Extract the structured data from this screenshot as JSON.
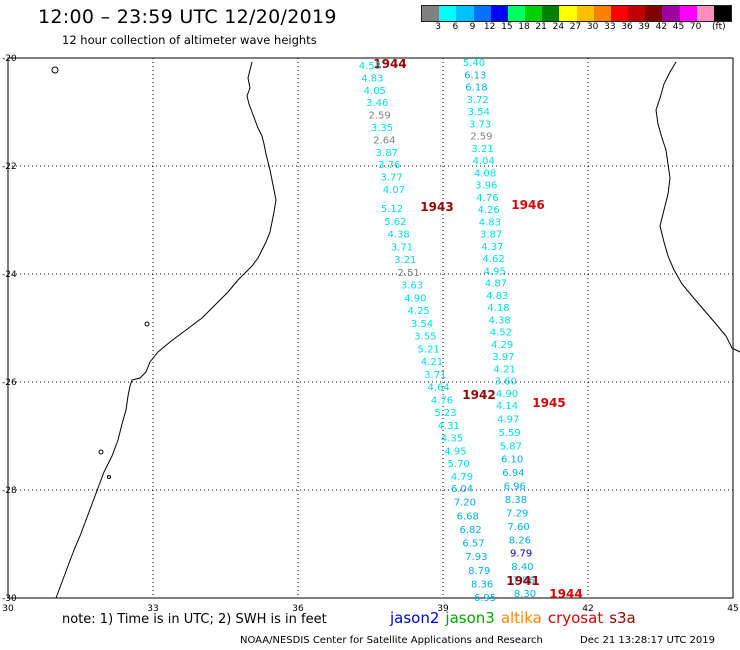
{
  "header": {
    "title": "12:00  –  23:59  UTC  12/20/2019",
    "subtitle": "12 hour collection of altimeter wave heights"
  },
  "legend": {
    "colors": [
      "#808080",
      "#00ffff",
      "#00c0ff",
      "#0070ff",
      "#0000ff",
      "#00ff60",
      "#00d000",
      "#008000",
      "#ffff00",
      "#ffc000",
      "#ff8000",
      "#ff0000",
      "#c00000",
      "#800000",
      "#a000a0",
      "#ff00ff",
      "#ff90c0",
      "#000000"
    ],
    "labels": [
      "3",
      "6",
      "9",
      "12",
      "15",
      "18",
      "21",
      "24",
      "27",
      "30",
      "33",
      "36",
      "39",
      "42",
      "45",
      "70",
      "(ft)"
    ]
  },
  "map": {
    "lat_labels": [
      "-20",
      "-22",
      "-24",
      "-26",
      "-28",
      "-30"
    ],
    "lon_labels": [
      "30",
      "33",
      "36",
      "39",
      "42",
      "45"
    ]
  },
  "passes": [
    {
      "id": "1944",
      "sat": "cryosat",
      "values": [
        "4.53",
        "4.83",
        "4.05",
        "3.46",
        "2.59",
        "3.35",
        "2.64",
        "3.87",
        "3.76",
        "3.77",
        "4.07"
      ]
    },
    {
      "id": "1943",
      "sat": "cryosat",
      "values": [
        "5.12",
        "5.62",
        "4.38",
        "3.71",
        "3.21",
        "2.51",
        "3.63",
        "4.90",
        "4.25",
        "3.54",
        "3.55",
        "5.21",
        "4.21",
        "3.71",
        "4.64",
        "4.76",
        "5.23",
        "4.31",
        "4.35",
        "4.95",
        "5.70",
        "4.79"
      ]
    },
    {
      "id": "1942",
      "sat": "cryosat",
      "values": [
        "6.04",
        "7.20",
        "6.68",
        "6.82",
        "6.57",
        "7.93",
        "8.79",
        "8.36",
        "6.95"
      ]
    },
    {
      "id": "1946",
      "sat": "s3a",
      "values": [
        "5.40",
        "6.13",
        "6.18",
        "3.72",
        "3.54",
        "3.73",
        "2.59",
        "3.21",
        "4.04",
        "4.08",
        "3.96",
        "4.76",
        "4.26",
        "4.83",
        "3.87",
        "4.37",
        "4.62",
        "4.95",
        "4.87",
        "4.83",
        "4.18",
        "4.38",
        "4.52",
        "4.29",
        "3.97",
        "4.21",
        "3.60",
        "4.90"
      ]
    },
    {
      "id": "1945",
      "sat": "s3a",
      "values": [
        "4.14",
        "4.97",
        "5.59",
        "5.87",
        "6.10",
        "6.94",
        "6.96",
        "8.38",
        "7.29",
        "7.60",
        "8.26",
        "9.79",
        "8.40",
        "7.86",
        "8.30"
      ]
    },
    {
      "id": "1941",
      "sat": "cryosat",
      "values": []
    },
    {
      "id": "1944",
      "sat": "s3a",
      "values": []
    }
  ],
  "footer": {
    "note": "note:  1)  Time is in UTC;  2)  SWH is in feet",
    "satellites": [
      {
        "name": "jason2",
        "color": "#0000dd"
      },
      {
        "name": "jason3",
        "color": "#00aa00"
      },
      {
        "name": "altika",
        "color": "#ff8800"
      },
      {
        "name": "cryosat",
        "color": "#dd0000"
      },
      {
        "name": "s3a",
        "color": "#990000"
      }
    ],
    "credit": "NOAA/NESDIS Center for Satellite Applications and Research",
    "timestamp": "Dec 21 13:28:17 UTC 2019"
  }
}
